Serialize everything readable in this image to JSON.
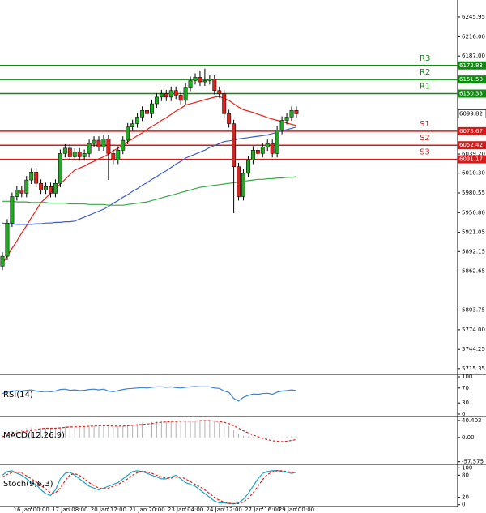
{
  "chart_data": [
    {
      "type": "candlestick",
      "categories": [
        null,
        null,
        null,
        null,
        null,
        null,
        "16 Jan 00:00",
        null,
        null,
        null,
        null,
        null,
        null,
        null,
        "17 Jan 08:00",
        null,
        null,
        null,
        null,
        null,
        null,
        null,
        "20 Jan 12:00",
        null,
        null,
        null,
        null,
        null,
        null,
        null,
        "21 Jan 20:00",
        null,
        null,
        null,
        null,
        null,
        null,
        null,
        "23 Jan 04:00",
        null,
        null,
        null,
        null,
        null,
        null,
        null,
        "24 Jan 12:00",
        null,
        null,
        null,
        null,
        null,
        null,
        null,
        "27 Jan 16:00",
        null,
        null,
        null,
        null,
        null,
        null,
        "29 Jan 00:00"
      ],
      "open": [
        5870,
        5885,
        5935,
        5975,
        5985,
        5980,
        6000,
        6012,
        5995,
        5985,
        5990,
        5980,
        5995,
        6040,
        6048,
        6035,
        6042,
        6035,
        6040,
        6055,
        6060,
        6050,
        6062,
        6040,
        6030,
        6045,
        6060,
        6080,
        6085,
        6095,
        6105,
        6100,
        6115,
        6125,
        6130,
        6125,
        6135,
        6128,
        6120,
        6140,
        6150,
        6155,
        6148,
        6150,
        6152,
        6135,
        6130,
        6100,
        6085,
        6020,
        5975,
        6010,
        6030,
        6045,
        6040,
        6050,
        6055,
        6040,
        6075,
        6090,
        6095,
        6105
      ],
      "high": [
        5891,
        5941,
        5981,
        5991,
        5991,
        6006,
        6018,
        6018,
        6001,
        5996,
        5996,
        6001,
        6046,
        6054,
        6054,
        6048,
        6048,
        6046,
        6061,
        6066,
        6066,
        6068,
        6068,
        6046,
        6051,
        6066,
        6086,
        6091,
        6101,
        6111,
        6111,
        6121,
        6131,
        6136,
        6136,
        6141,
        6141,
        6134,
        6146,
        6156,
        6161,
        6165,
        6168,
        6158,
        6158,
        6141,
        6136,
        6106,
        6091,
        6026,
        6016,
        6036,
        6051,
        6051,
        6056,
        6061,
        6061,
        6081,
        6096,
        6101,
        6111,
        6111
      ],
      "low": [
        5864,
        5879,
        5929,
        5969,
        5974,
        5974,
        5994,
        5989,
        5979,
        5979,
        5974,
        5974,
        5989,
        6034,
        6029,
        6029,
        6029,
        6029,
        6034,
        6049,
        6044,
        6044,
        6000,
        6024,
        6024,
        6039,
        6054,
        6074,
        6079,
        6089,
        6094,
        6094,
        6109,
        6119,
        6119,
        6119,
        6122,
        6114,
        6114,
        6134,
        6144,
        6142,
        6142,
        6144,
        6129,
        6124,
        6094,
        6079,
        5950,
        5969,
        5969,
        6004,
        6024,
        6034,
        6034,
        6044,
        6034,
        6034,
        6069,
        6084,
        6089,
        6093
      ],
      "close": [
        5885,
        5935,
        5975,
        5985,
        5980,
        6000,
        6012,
        5995,
        5985,
        5990,
        5980,
        5995,
        6040,
        6048,
        6035,
        6042,
        6035,
        6040,
        6055,
        6060,
        6050,
        6062,
        6040,
        6030,
        6045,
        6060,
        6080,
        6085,
        6095,
        6105,
        6100,
        6115,
        6125,
        6130,
        6125,
        6135,
        6128,
        6120,
        6140,
        6150,
        6155,
        6148,
        6150,
        6152,
        6135,
        6130,
        6100,
        6085,
        6020,
        5975,
        6010,
        6030,
        6045,
        6040,
        6050,
        6055,
        6040,
        6075,
        6090,
        6095,
        6105,
        6099.82
      ],
      "up_color": "#22a822",
      "down_color": "#e0201b",
      "series": [
        {
          "color": "#e8201a",
          "values": [
            5874,
            5885,
            5897,
            5908,
            5920,
            5931,
            5943,
            5954,
            5966,
            5973,
            5980,
            5987,
            5994,
            6001,
            6008,
            6015,
            6018,
            6021,
            6025,
            6028,
            6032,
            6035,
            6039,
            6044,
            6048,
            6053,
            6058,
            6062,
            6067,
            6071,
            6076,
            6081,
            6085,
            6090,
            6094,
            6099,
            6104,
            6108,
            6113,
            6115,
            6117,
            6119,
            6121,
            6123,
            6125,
            6126,
            6123,
            6120,
            6115,
            6110,
            6106,
            6104,
            6102,
            6099,
            6097,
            6094,
            6092,
            6090,
            6088,
            6086,
            6084,
            6082
          ]
        },
        {
          "color": "#3f5fd0",
          "values": [
            5935,
            5934,
            5934,
            5933,
            5933,
            5933,
            5933,
            5934,
            5934,
            5935,
            5935,
            5936,
            5936,
            5937,
            5937,
            5938,
            5941,
            5944,
            5947,
            5950,
            5953,
            5956,
            5960,
            5965,
            5969,
            5974,
            5978,
            5983,
            5987,
            5992,
            5996,
            6001,
            6005,
            6010,
            6014,
            6019,
            6024,
            6028,
            6033,
            6036,
            6039,
            6042,
            6045,
            6049,
            6052,
            6055,
            6058,
            6059,
            6060,
            6062,
            6063,
            6064,
            6065,
            6066,
            6067,
            6068,
            6070,
            6072,
            6074,
            6076,
            6078,
            6080
          ]
        },
        {
          "color": "#3aa84a",
          "values": [
            5968,
            5968,
            5968,
            5967,
            5967,
            5967,
            5966,
            5966,
            5966,
            5966,
            5965,
            5965,
            5965,
            5965,
            5964,
            5964,
            5964,
            5964,
            5963,
            5963,
            5963,
            5963,
            5962,
            5962,
            5962,
            5962,
            5963,
            5964,
            5965,
            5966,
            5967,
            5969,
            5971,
            5973,
            5975,
            5977,
            5979,
            5981,
            5983,
            5985,
            5987,
            5989,
            5990,
            5991,
            5992,
            5993,
            5994,
            5995,
            5996,
            5997,
            5998,
            5999,
            6000,
            6001,
            6001,
            6002,
            6002,
            6003,
            6003,
            6004,
            6004,
            6005
          ]
        }
      ],
      "levels": [
        {
          "label": "R3",
          "value": 6172.83,
          "color": "#118a11"
        },
        {
          "label": "R2",
          "value": 6151.58,
          "color": "#118a11"
        },
        {
          "label": "R1",
          "value": 6130.33,
          "color": "#118a11"
        },
        {
          "label": "S1",
          "value": 6073.67,
          "color": "#d41a1a"
        },
        {
          "label": "S2",
          "value": 6052.42,
          "color": "#d41a1a"
        },
        {
          "label": "S3",
          "value": 6031.17,
          "color": "#d41a1a"
        }
      ],
      "last_price": 6099.82,
      "ylim": [
        5706.6,
        6271.6
      ],
      "yticks": [
        {
          "value": 6245.95,
          "label": "6245.95"
        },
        {
          "value": 6216,
          "label": "6216.00"
        },
        {
          "value": 6187,
          "label": "6187.00"
        },
        {
          "value": 6039.2,
          "label": "6039.20"
        },
        {
          "value": 6010.3,
          "label": "6010.30"
        },
        {
          "value": 5980.55,
          "label": "5980.55"
        },
        {
          "value": 5950.8,
          "label": "5950.80"
        },
        {
          "value": 5921.05,
          "label": "5921.05"
        },
        {
          "value": 5892.15,
          "label": "5892.15"
        },
        {
          "value": 5862.65,
          "label": "5862.65"
        },
        {
          "value": 5803.75,
          "label": "5803.75"
        },
        {
          "value": 5774,
          "label": "5774.00"
        },
        {
          "value": 5744.25,
          "label": "5744.25"
        },
        {
          "value": 5715.35,
          "label": "5715.35"
        }
      ]
    },
    {
      "type": "line",
      "title": "RSI(14)",
      "ylim": [
        0,
        100
      ],
      "yticks": [
        100,
        70,
        30,
        0
      ],
      "series": [
        {
          "color": "#3b82d6",
          "values": [
            55,
            60,
            62,
            63,
            62,
            64,
            65,
            62,
            60,
            61,
            60,
            62,
            66,
            67,
            64,
            65,
            63,
            64,
            66,
            67,
            65,
            67,
            62,
            60,
            63,
            66,
            68,
            69,
            70,
            71,
            70,
            72,
            73,
            73,
            72,
            73,
            71,
            70,
            72,
            73,
            74,
            73,
            73,
            73,
            70,
            69,
            62,
            58,
            42,
            35,
            45,
            50,
            54,
            53,
            55,
            56,
            53,
            59,
            62,
            63,
            65,
            63
          ]
        }
      ]
    },
    {
      "type": "macd",
      "title": "MACD(12,26,9)",
      "ylim": [
        -62,
        48
      ],
      "yticks": [
        40.403,
        {
          "value": 0,
          "label": "0.00"
        },
        -57.575
      ],
      "histogram": {
        "color": "#b0b0b0",
        "values": [
          5,
          10,
          15,
          18,
          20,
          22,
          24,
          24,
          23,
          22,
          21,
          21,
          24,
          26,
          26,
          27,
          27,
          27,
          28,
          28,
          28,
          29,
          27,
          26,
          26,
          27,
          29,
          31,
          33,
          35,
          36,
          37,
          38,
          39,
          39,
          40,
          40,
          39,
          39,
          40,
          40,
          40,
          40,
          40,
          38,
          36,
          32,
          27,
          18,
          8,
          4,
          2,
          1,
          0,
          -1,
          -1,
          -2,
          0,
          1,
          2,
          3,
          3
        ]
      },
      "signal": {
        "color": "#e02020",
        "values": [
          2,
          4,
          7,
          10,
          13,
          15,
          17,
          19,
          21,
          22,
          22,
          22,
          23,
          24,
          25,
          25,
          26,
          26,
          27,
          27,
          28,
          28,
          28,
          27,
          27,
          27,
          28,
          29,
          30,
          31,
          32,
          33,
          35,
          36,
          37,
          38,
          38,
          39,
          39,
          39,
          39,
          40,
          40,
          40,
          39,
          38,
          36,
          33,
          28,
          22,
          16,
          11,
          6,
          2,
          -2,
          -5,
          -8,
          -9,
          -10,
          -9,
          -7,
          -5
        ]
      }
    },
    {
      "type": "line",
      "title": "Stoch(9,6,3)",
      "ylim": [
        -5,
        105
      ],
      "yticks": [
        100,
        80,
        20,
        0
      ],
      "series": [
        {
          "color": "#1aa7c8",
          "values": [
            80,
            90,
            92,
            85,
            80,
            70,
            60,
            55,
            40,
            30,
            25,
            40,
            70,
            85,
            88,
            80,
            70,
            60,
            50,
            45,
            40,
            45,
            50,
            55,
            60,
            70,
            80,
            90,
            92,
            90,
            85,
            80,
            75,
            70,
            70,
            75,
            80,
            70,
            60,
            55,
            50,
            40,
            30,
            20,
            10,
            5,
            5,
            3,
            2,
            5,
            15,
            30,
            50,
            70,
            85,
            90,
            92,
            93,
            90,
            88,
            85,
            88
          ]
        },
        {
          "color": "#e02020",
          "dashed": true,
          "values": [
            75,
            82,
            87,
            89,
            86,
            78,
            70,
            62,
            52,
            42,
            32,
            32,
            45,
            65,
            81,
            84,
            79,
            70,
            60,
            52,
            45,
            43,
            45,
            50,
            55,
            62,
            70,
            80,
            87,
            91,
            89,
            85,
            80,
            75,
            72,
            72,
            75,
            75,
            70,
            62,
            55,
            48,
            40,
            30,
            20,
            12,
            7,
            4,
            3,
            3,
            7,
            17,
            32,
            50,
            68,
            82,
            89,
            92,
            92,
            90,
            88,
            87
          ]
        }
      ]
    }
  ]
}
